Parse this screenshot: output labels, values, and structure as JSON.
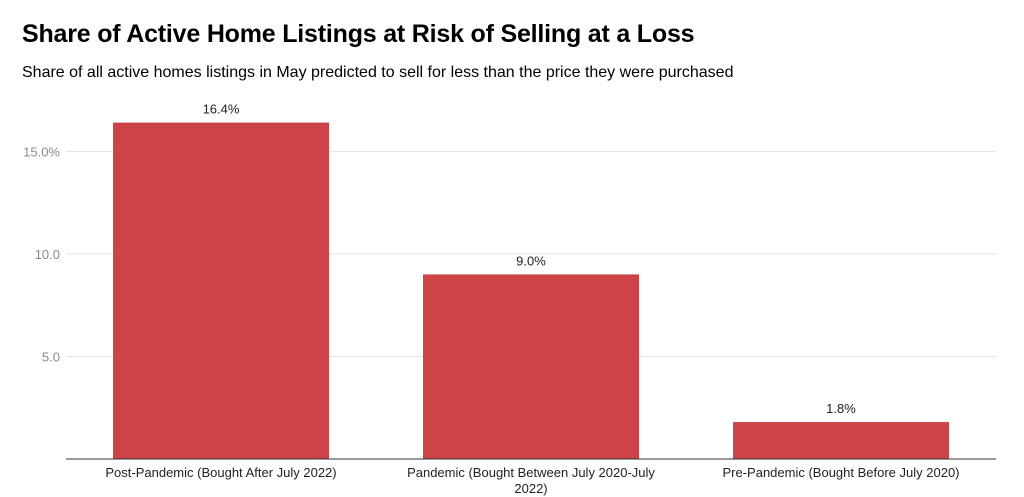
{
  "chart_data": {
    "type": "bar",
    "title": "Share of Active Home Listings at Risk of Selling at a Loss",
    "subtitle": "Share of all active homes listings in May predicted to sell for less than the price they were purchased",
    "categories": [
      [
        "Post-Pandemic (Bought After July 2022)"
      ],
      [
        "Pandemic (Bought Between July 2020-July",
        "2022)"
      ],
      [
        "Pre-Pandemic (Bought Before July 2020)"
      ]
    ],
    "values": [
      16.4,
      9.0,
      1.8
    ],
    "data_labels": [
      "16.4%",
      "9.0%",
      "1.8%"
    ],
    "yticks": [
      {
        "value": 5,
        "label": "5.0"
      },
      {
        "value": 10,
        "label": "10.0"
      },
      {
        "value": 15,
        "label": "15.0%"
      }
    ],
    "ylim": [
      0,
      17.6
    ],
    "xlabel": "",
    "ylabel": "",
    "bar_color": "#cc4446",
    "grid": true
  }
}
